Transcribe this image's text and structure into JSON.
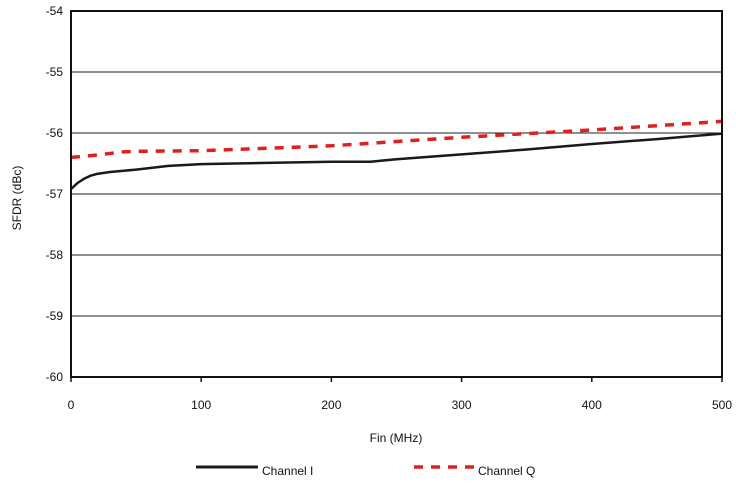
{
  "chart_data": {
    "type": "line",
    "title": "",
    "xlabel": "Fin (MHz)",
    "ylabel": "SFDR (dBc)",
    "xlim": [
      0,
      500
    ],
    "ylim": [
      -60,
      -54
    ],
    "x_ticks": [
      "0",
      "100",
      "200",
      "300",
      "400",
      "500"
    ],
    "y_ticks": [
      "-54",
      "-55",
      "-56",
      "-57",
      "-58",
      "-59",
      "-60"
    ],
    "grid": "horizontal",
    "legend_position": "bottom",
    "series": [
      {
        "name": "Channel I",
        "color": "#1a1a1a",
        "style": "solid",
        "x": [
          0,
          5,
          10,
          15,
          20,
          30,
          50,
          75,
          100,
          150,
          200,
          230,
          250,
          300,
          350,
          400,
          450,
          500
        ],
        "y": [
          -56.92,
          -56.82,
          -56.75,
          -56.7,
          -56.67,
          -56.64,
          -56.6,
          -56.54,
          -56.51,
          -56.49,
          -56.47,
          -56.47,
          -56.43,
          -56.35,
          -56.27,
          -56.18,
          -56.1,
          -56.01
        ]
      },
      {
        "name": "Channel Q",
        "color": "#e02020",
        "style": "dashed",
        "x": [
          0,
          20,
          40,
          50,
          100,
          150,
          200,
          250,
          300,
          350,
          400,
          450,
          500
        ],
        "y": [
          -56.4,
          -56.36,
          -56.31,
          -56.3,
          -56.29,
          -56.25,
          -56.21,
          -56.14,
          -56.07,
          -56.01,
          -55.95,
          -55.88,
          -55.81
        ]
      }
    ]
  }
}
